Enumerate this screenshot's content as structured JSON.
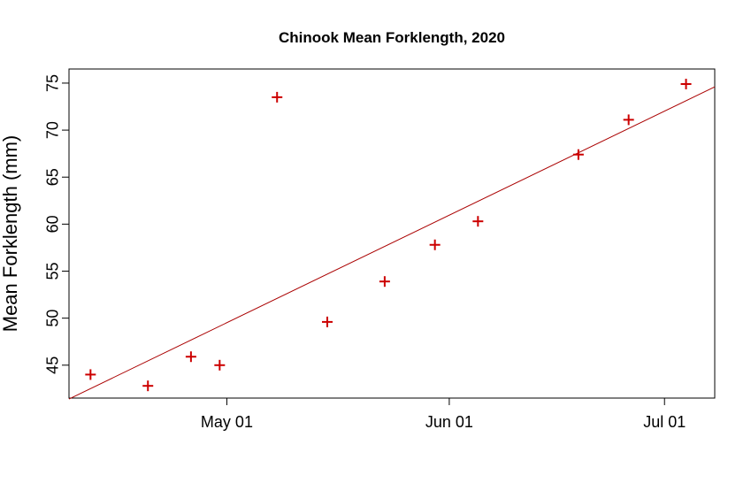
{
  "chart_data": {
    "type": "scatter",
    "title": "Chinook Mean Forklength, 2020",
    "xlabel": "",
    "ylabel": "Mean Forklength (mm)",
    "x_axis_type": "date",
    "xlim": [
      "2020-04-09",
      "2020-07-08"
    ],
    "ylim": [
      41.5,
      76.5
    ],
    "x_ticks": [
      {
        "date": "2020-05-01",
        "label": "May 01"
      },
      {
        "date": "2020-06-01",
        "label": "Jun 01"
      },
      {
        "date": "2020-07-01",
        "label": "Jul 01"
      }
    ],
    "y_ticks": [
      45,
      50,
      55,
      60,
      65,
      70,
      75
    ],
    "grid": false,
    "point_marker": "plus",
    "point_color": "#cc0000",
    "line_color": "#aa0000",
    "points": [
      {
        "x": "2020-04-12",
        "y": 44.0
      },
      {
        "x": "2020-04-20",
        "y": 42.8
      },
      {
        "x": "2020-04-26",
        "y": 45.9
      },
      {
        "x": "2020-04-30",
        "y": 45.0
      },
      {
        "x": "2020-05-08",
        "y": 73.5
      },
      {
        "x": "2020-05-15",
        "y": 49.6
      },
      {
        "x": "2020-05-23",
        "y": 53.9
      },
      {
        "x": "2020-05-30",
        "y": 57.8
      },
      {
        "x": "2020-06-05",
        "y": 60.3
      },
      {
        "x": "2020-06-19",
        "y": 67.4
      },
      {
        "x": "2020-06-26",
        "y": 71.1
      },
      {
        "x": "2020-07-04",
        "y": 74.9
      }
    ],
    "regression_line": {
      "start": {
        "x": "2020-04-09",
        "y": 41.4
      },
      "end": {
        "x": "2020-07-08",
        "y": 74.6
      }
    }
  }
}
